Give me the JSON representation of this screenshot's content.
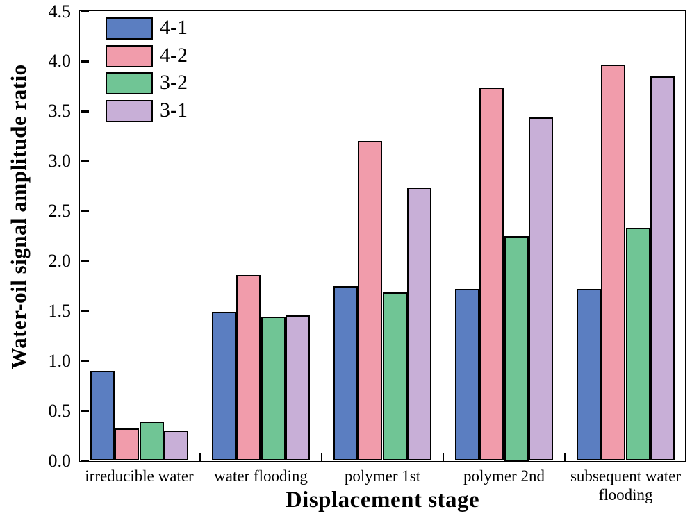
{
  "chart_data": {
    "type": "bar",
    "title": "",
    "xlabel": "Displacement stage",
    "ylabel": "Water-oil signal amplitude ratio",
    "categories": [
      "irreducible water",
      "water flooding",
      "polymer 1st",
      "polymer 2nd",
      "subsequent water\nflooding"
    ],
    "series": [
      {
        "name": "4-1",
        "color": "#5b7ec1",
        "values": [
          0.9,
          1.49,
          1.75,
          1.72,
          1.72
        ]
      },
      {
        "name": "4-2",
        "color": "#f19cab",
        "values": [
          0.32,
          1.86,
          3.2,
          3.74,
          3.97
        ]
      },
      {
        "name": "3-2",
        "color": "#70c595",
        "values": [
          0.39,
          1.44,
          1.69,
          2.25,
          2.33
        ]
      },
      {
        "name": "3-1",
        "color": "#c8afd7",
        "values": [
          0.3,
          1.46,
          2.74,
          3.44,
          3.85
        ]
      }
    ],
    "ylim": [
      0.0,
      4.5
    ],
    "ytick_step": 0.5,
    "yticks": [
      "0.0",
      "0.5",
      "1.0",
      "1.5",
      "2.0",
      "2.5",
      "3.0",
      "3.5",
      "4.0",
      "4.5"
    ],
    "grid": false,
    "legend_position": "top-left",
    "axis_color": "#000000",
    "bar_border_color": "#000000",
    "background_color": "#ffffff"
  }
}
